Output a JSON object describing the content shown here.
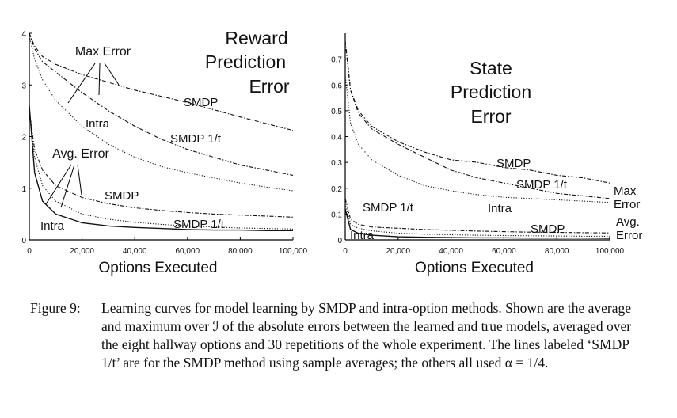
{
  "chart_data": [
    {
      "type": "line",
      "title": [
        "Reward",
        "Prediction",
        "Error"
      ],
      "xlabel": "Options Executed",
      "ylabel": "",
      "xlim": [
        0,
        100000
      ],
      "ylim": [
        0,
        4
      ],
      "xticks": [
        "0",
        "20,000",
        "40,000",
        "60,000",
        "80,000",
        "100,000"
      ],
      "yticks": [
        "0",
        "1",
        "2",
        "3",
        "4"
      ],
      "x": [
        0,
        2000,
        5000,
        10000,
        20000,
        30000,
        40000,
        50000,
        60000,
        70000,
        80000,
        90000,
        100000
      ],
      "series": [
        {
          "name": "SMDP",
          "group": "Max Error",
          "style": "dashdot",
          "values": [
            4.0,
            3.75,
            3.55,
            3.4,
            3.2,
            3.05,
            2.9,
            2.78,
            2.66,
            2.52,
            2.38,
            2.25,
            2.12
          ]
        },
        {
          "name": "SMDP 1/t",
          "group": "Max Error",
          "style": "dashdot",
          "values": [
            4.0,
            3.7,
            3.45,
            3.25,
            2.85,
            2.5,
            2.2,
            1.95,
            1.75,
            1.6,
            1.45,
            1.35,
            1.25
          ]
        },
        {
          "name": "Intra",
          "group": "Max Error",
          "style": "dotted",
          "values": [
            3.95,
            3.5,
            3.1,
            2.7,
            2.2,
            1.85,
            1.6,
            1.42,
            1.3,
            1.2,
            1.1,
            1.02,
            0.95
          ]
        },
        {
          "name": "SMDP",
          "group": "Avg. Error",
          "style": "dashdot",
          "values": [
            2.5,
            1.75,
            1.35,
            1.05,
            0.82,
            0.7,
            0.62,
            0.57,
            0.53,
            0.5,
            0.48,
            0.46,
            0.44
          ]
        },
        {
          "name": "SMDP 1/t",
          "group": "Avg. Error",
          "style": "dotted",
          "values": [
            2.5,
            1.6,
            1.05,
            0.75,
            0.5,
            0.4,
            0.34,
            0.3,
            0.27,
            0.25,
            0.23,
            0.22,
            0.21
          ]
        },
        {
          "name": "Intra",
          "group": "Avg. Error",
          "style": "solid",
          "values": [
            2.6,
            1.3,
            0.75,
            0.5,
            0.33,
            0.27,
            0.24,
            0.22,
            0.2,
            0.19,
            0.19,
            0.18,
            0.18
          ]
        }
      ],
      "annotations": {
        "max_error": "Max Error",
        "avg_error": "Avg. Error",
        "smdp_max": "SMDP",
        "smdp1t_max": "SMDP 1/t",
        "intra_max": "Intra",
        "smdp_avg": "SMDP",
        "smdp1t_avg": "SMDP 1/t",
        "intra_avg": "Intra"
      }
    },
    {
      "type": "line",
      "title": [
        "State",
        "Prediction",
        "Error"
      ],
      "xlabel": "Options Executed",
      "ylabel": "",
      "xlim": [
        0,
        100000
      ],
      "ylim": [
        0,
        0.8
      ],
      "xticks": [
        "0",
        "20,000",
        "40,000",
        "60,000",
        "80,000",
        "100,000"
      ],
      "yticks": [
        "0",
        "0.1",
        "0.2",
        "0.3",
        "0.4",
        "0.5",
        "0.6",
        "0.7"
      ],
      "x": [
        0,
        2000,
        5000,
        10000,
        20000,
        30000,
        40000,
        50000,
        60000,
        70000,
        80000,
        90000,
        100000
      ],
      "series": [
        {
          "name": "SMDP",
          "group": "Max Error",
          "style": "dashdot",
          "values": [
            0.77,
            0.58,
            0.5,
            0.44,
            0.38,
            0.34,
            0.31,
            0.3,
            0.28,
            0.27,
            0.25,
            0.24,
            0.22
          ]
        },
        {
          "name": "SMDP 1/t",
          "group": "Max Error",
          "style": "dashdot",
          "values": [
            0.77,
            0.58,
            0.49,
            0.43,
            0.37,
            0.32,
            0.27,
            0.24,
            0.22,
            0.2,
            0.18,
            0.17,
            0.16
          ]
        },
        {
          "name": "Intra",
          "group": "Max Error",
          "style": "dotted",
          "values": [
            0.64,
            0.45,
            0.37,
            0.31,
            0.25,
            0.21,
            0.19,
            0.175,
            0.165,
            0.16,
            0.155,
            0.15,
            0.145
          ]
        },
        {
          "name": "SMDP",
          "group": "Avg. Error",
          "style": "dashdot",
          "values": [
            0.16,
            0.08,
            0.06,
            0.05,
            0.045,
            0.04,
            0.037,
            0.034,
            0.032,
            0.03,
            0.029,
            0.028,
            0.027
          ]
        },
        {
          "name": "SMDP 1/t",
          "group": "Avg. Error",
          "style": "dotted",
          "values": [
            0.14,
            0.06,
            0.045,
            0.035,
            0.026,
            0.022,
            0.02,
            0.018,
            0.017,
            0.016,
            0.015,
            0.014,
            0.014
          ]
        },
        {
          "name": "Intra",
          "group": "Avg. Error",
          "style": "solid",
          "values": [
            0.12,
            0.04,
            0.025,
            0.018,
            0.012,
            0.01,
            0.009,
            0.008,
            0.008,
            0.007,
            0.007,
            0.007,
            0.006
          ]
        }
      ],
      "annotations": {
        "max_error": "Max Error",
        "avg_error": "Avg. Error",
        "smdp_max": "SMDP",
        "smdp1t_max": "SMDP 1/t",
        "intra_max": "Intra",
        "smdp_avg": "SMDP",
        "smdp1t_avg": "SMDP 1/t",
        "intra_avg": "Intra"
      }
    }
  ],
  "caption": {
    "number": "Figure 9:",
    "text": "Learning curves for model learning by SMDP and intra-option methods. Shown are the average and maximum over ℐ of the absolute errors between the learned and true models, averaged over the eight hallway options and 30 repetitions of the whole experiment. The lines labeled ‘SMDP 1/t’ are for the SMDP method using sample averages; the others all used α = 1/4."
  }
}
